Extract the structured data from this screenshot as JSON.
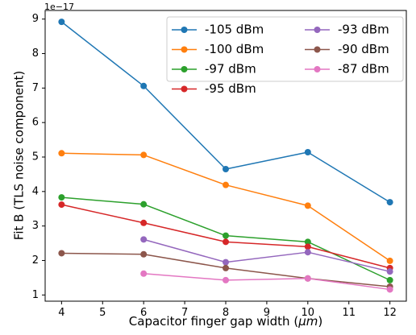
{
  "chart_data": {
    "type": "line",
    "title": "",
    "xlabel": "Capacitor finger gap width (μm)",
    "xlabel_parts": [
      "Capacitor finger gap width (",
      "μm",
      ")"
    ],
    "ylabel": "Fit B (TLS noise component)",
    "y_offset_text": "1e−17",
    "xlim": [
      3.6,
      12.4
    ],
    "ylim": [
      0.82,
      9.25
    ],
    "x_ticks": [
      4,
      5,
      6,
      7,
      8,
      9,
      10,
      11,
      12
    ],
    "y_ticks": [
      1,
      2,
      3,
      4,
      5,
      6,
      7,
      8,
      9
    ],
    "grid": false,
    "legend_position": "upper right",
    "legend_columns": 2,
    "series": [
      {
        "name": "-105 dBm",
        "color": "#1f77b4",
        "x": [
          4,
          6,
          8,
          10,
          12
        ],
        "y": [
          8.92,
          7.06,
          4.65,
          5.14,
          3.69
        ]
      },
      {
        "name": "-100 dBm",
        "color": "#ff7f0e",
        "x": [
          4,
          6,
          8,
          10,
          12
        ],
        "y": [
          5.11,
          5.06,
          4.19,
          3.59,
          1.99
        ]
      },
      {
        "name": "-97 dBm",
        "color": "#2ca02c",
        "x": [
          4,
          6,
          8,
          10,
          12
        ],
        "y": [
          3.83,
          3.63,
          2.72,
          2.54,
          1.43
        ]
      },
      {
        "name": "-95 dBm",
        "color": "#d62728",
        "x": [
          4,
          6,
          8,
          10,
          12
        ],
        "y": [
          3.62,
          3.09,
          2.54,
          2.4,
          1.78
        ]
      },
      {
        "name": "-93 dBm",
        "color": "#9467bd",
        "x": [
          6,
          8,
          10,
          12
        ],
        "y": [
          2.61,
          1.95,
          2.24,
          1.68
        ]
      },
      {
        "name": "-90 dBm",
        "color": "#8c564b",
        "x": [
          4,
          6,
          8,
          10,
          12
        ],
        "y": [
          2.21,
          2.18,
          1.78,
          1.48,
          1.24
        ]
      },
      {
        "name": "-87 dBm",
        "color": "#e377c2",
        "x": [
          6,
          8,
          10,
          12
        ],
        "y": [
          1.62,
          1.43,
          1.48,
          1.16
        ]
      }
    ]
  }
}
